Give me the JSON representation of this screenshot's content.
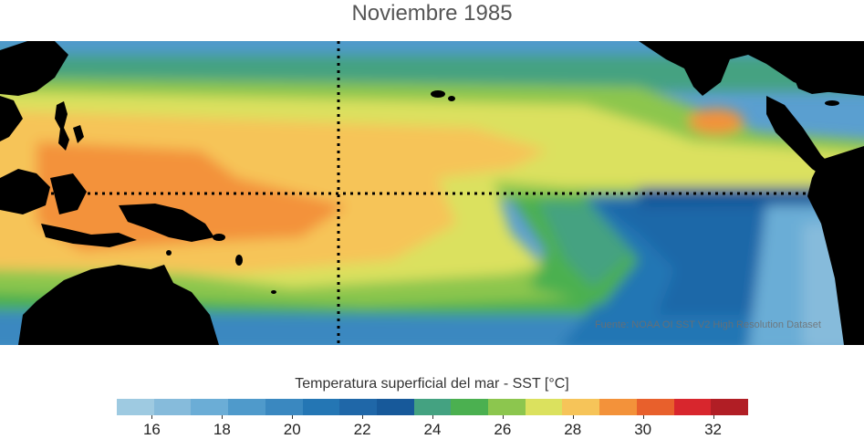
{
  "title": "Noviembre 1985",
  "source_credit": "Fuente: NOAA OI SST V2 High Resolution Dataset",
  "legend": {
    "label": "Temperatura superficial del mar - SST  [°C]",
    "min": 15,
    "max": 33,
    "ticks": [
      "16",
      "18",
      "20",
      "22",
      "24",
      "26",
      "28",
      "30",
      "32"
    ],
    "colors": [
      "#9ecae1",
      "#86bbdb",
      "#6badd6",
      "#4f9acb",
      "#3a88c0",
      "#2476b4",
      "#1f67a8",
      "#17599a",
      "#44a281",
      "#4bb050",
      "#8cc64e",
      "#dbe15e",
      "#f6c459",
      "#f3923a",
      "#e8602c",
      "#d8262d",
      "#b11e25"
    ]
  },
  "map": {
    "region": "Pacífico tropical",
    "reference_lines": [
      "equator",
      "meridian"
    ]
  }
}
